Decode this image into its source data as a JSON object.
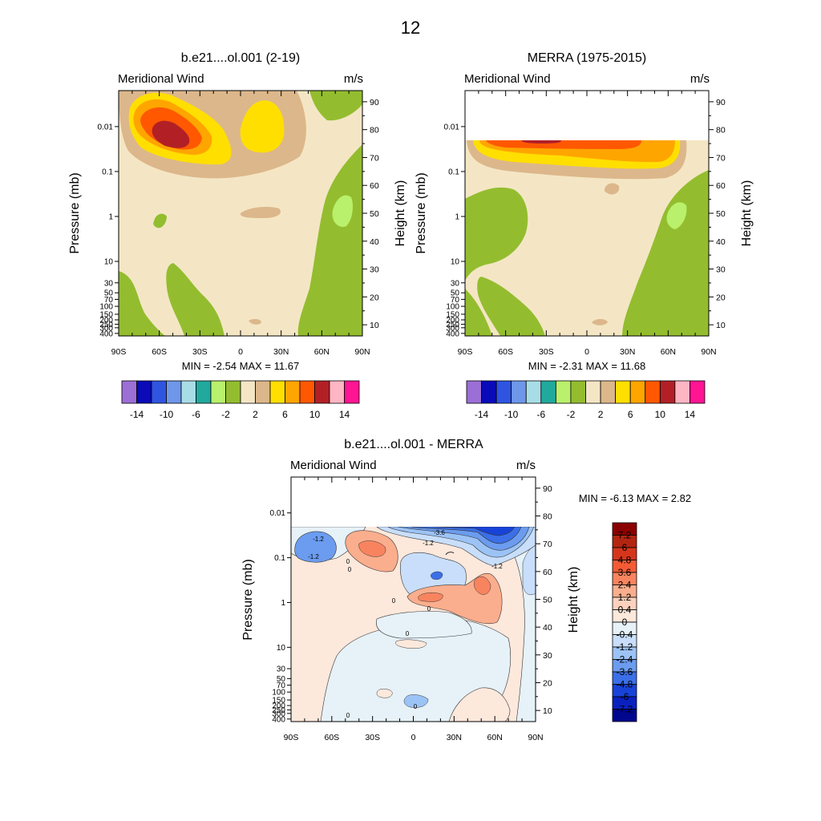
{
  "figure": {
    "main_title": "12",
    "variable": "Meridional Wind",
    "units": "m/s"
  },
  "axes": {
    "y_left_label": "Pressure (mb)",
    "y_right_label": "Height (km)",
    "pressure_ticks": [
      "0.01",
      "0.1",
      "1",
      "10",
      "30",
      "50",
      "70",
      "100",
      "150",
      "200",
      "250",
      "300",
      "400"
    ],
    "height_ticks": [
      "10",
      "20",
      "30",
      "40",
      "50",
      "60",
      "70",
      "80",
      "90"
    ],
    "lat_ticks": [
      "90S",
      "60S",
      "30S",
      "0",
      "30N",
      "60N",
      "90N"
    ]
  },
  "palettes": {
    "abs_colors": [
      "#9b6fd6",
      "#0a0ab8",
      "#2f55e0",
      "#6e97ea",
      "#a8dde6",
      "#21a99e",
      "#b9f06c",
      "#93bd2f",
      "#f4e6c4",
      "#dcb78b",
      "#ffdf00",
      "#ffa500",
      "#ff5800",
      "#b22026",
      "#ffb6c4",
      "#ff1493"
    ],
    "abs_labels": [
      "-14",
      "-10",
      "-6",
      "-2",
      "2",
      "6",
      "10",
      "14"
    ],
    "diff_colors": [
      "#8b0000",
      "#b42511",
      "#d5361b",
      "#f45b35",
      "#f8845f",
      "#fbae8d",
      "#fdd1bd",
      "#fde8dc",
      "#e6f1f8",
      "#c8defa",
      "#9cc3f5",
      "#6b9cef",
      "#3b6fe8",
      "#1843d8",
      "#0a21c1",
      "#00068e"
    ],
    "diff_labels": [
      "7.2",
      "6",
      "4.8",
      "3.6",
      "2.4",
      "1.2",
      "0.4",
      "0",
      "-0.4",
      "-1.2",
      "-2.4",
      "-3.6",
      "-4.8",
      "-6",
      "-7.2"
    ]
  },
  "chart_data": [
    {
      "type": "heatmap",
      "title": "b.e21....ol.001 (2-19)",
      "subtitle_left": "Meridional Wind",
      "subtitle_right": "m/s",
      "xlabel": "",
      "ylabel": "Pressure (mb)",
      "ylabel_right": "Height (km)",
      "x": [
        "90S",
        "60S",
        "30S",
        "0",
        "30N",
        "60N",
        "90N"
      ],
      "xlim": [
        -90,
        90
      ],
      "ylim_height_km": [
        6,
        94
      ],
      "levels": [
        -14,
        -12,
        -10,
        -8,
        -6,
        -4,
        -2,
        0,
        2,
        4,
        6,
        8,
        10,
        12,
        14
      ],
      "stats": {
        "min": -2.54,
        "max": 11.67
      },
      "min_text": "MIN =  -2.54  MAX =  11.67",
      "features": [
        {
          "name": "northward maximum core",
          "lat": -55,
          "height_km": 79,
          "value": 10.8
        },
        {
          "name": "secondary maximum",
          "lat": 15,
          "height_km": 80,
          "value": 7.0
        },
        {
          "name": "southward band",
          "lat": 70,
          "height_km": 40,
          "value": -1.5
        },
        {
          "name": "local minimum",
          "lat": 82,
          "height_km": 52,
          "value": -2.54
        }
      ]
    },
    {
      "type": "heatmap",
      "title": "MERRA (1975-2015)",
      "subtitle_left": "Meridional Wind",
      "subtitle_right": "m/s",
      "xlabel": "",
      "ylabel": "Pressure (mb)",
      "ylabel_right": "Height (km)",
      "x": [
        "90S",
        "60S",
        "30S",
        "0",
        "30N",
        "60N",
        "90N"
      ],
      "xlim": [
        -90,
        90
      ],
      "ylim_height_km": [
        6,
        94
      ],
      "data_top_km": 76,
      "levels": [
        -14,
        -12,
        -10,
        -8,
        -6,
        -4,
        -2,
        0,
        2,
        4,
        6,
        8,
        10,
        12,
        14
      ],
      "stats": {
        "min": -2.31,
        "max": 11.68
      },
      "min_text": "MIN =  -2.31  MAX =  11.68",
      "features": [
        {
          "name": "northward maximum core",
          "lat": -10,
          "height_km": 75.5,
          "value": 11.68
        },
        {
          "name": "southward band",
          "lat": 70,
          "height_km": 45,
          "value": -1.5
        },
        {
          "name": "southern negative region",
          "lat": -70,
          "height_km": 45,
          "value": -1.0
        }
      ]
    },
    {
      "type": "heatmap",
      "title": "b.e21....ol.001 - MERRA",
      "subtitle_left": "Meridional Wind",
      "subtitle_right": "m/s",
      "xlabel": "",
      "ylabel": "Pressure (mb)",
      "ylabel_right": "Height (km)",
      "x": [
        "90S",
        "60S",
        "30S",
        "0",
        "30N",
        "60N",
        "90N"
      ],
      "xlim": [
        -90,
        90
      ],
      "ylim_height_km": [
        6,
        94
      ],
      "data_top_km": 76,
      "levels": [
        -7.2,
        -6,
        -4.8,
        -3.6,
        -2.4,
        -1.2,
        -0.4,
        0,
        0.4,
        1.2,
        2.4,
        3.6,
        4.8,
        6,
        7.2
      ],
      "stats": {
        "min": -6.13,
        "max": 2.82
      },
      "min_text": "MIN =  -6.13  MAX =   2.82",
      "contour_labels": [
        "-3.6",
        "-1.2",
        "-1.2",
        "-1.2",
        "-1.2",
        "0",
        "0",
        "0",
        "0",
        "0",
        "0",
        "0"
      ],
      "features": [
        {
          "name": "negative core",
          "lat": 30,
          "height_km": 73,
          "value": -6.13
        },
        {
          "name": "positive core",
          "lat": 10,
          "height_km": 52,
          "value": 2.5
        },
        {
          "name": "positive core",
          "lat": 50,
          "height_km": 57,
          "value": 2.82
        },
        {
          "name": "positive core",
          "lat": -25,
          "height_km": 71,
          "value": 2.6
        },
        {
          "name": "negative core",
          "lat": -70,
          "height_km": 71,
          "value": -2.2
        }
      ]
    }
  ]
}
